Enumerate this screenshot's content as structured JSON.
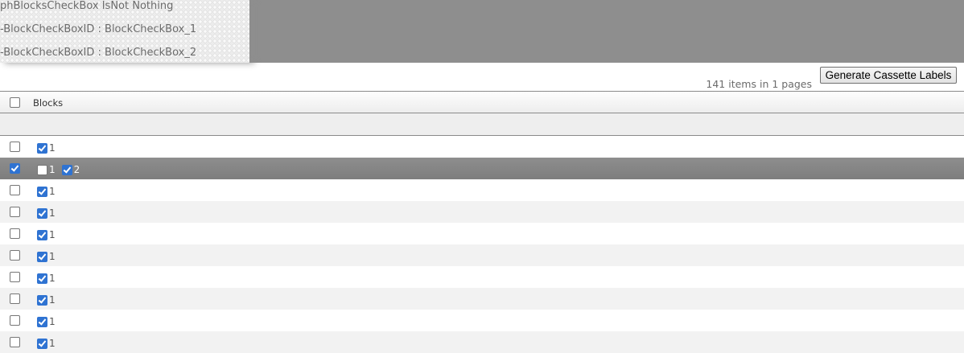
{
  "debug": {
    "lines": [
      "phBlocksCheckBox IsNot Nothing",
      "-BlockCheckBoxID : BlockCheckBox_1",
      "-BlockCheckBoxID : BlockCheckBox_2"
    ]
  },
  "toolbar": {
    "generate_label": "Generate Cassette Labels",
    "count_text": "141 items in 1 pages"
  },
  "grid": {
    "header": {
      "blocks": "Blocks",
      "select_all": false
    },
    "rows": [
      {
        "selected": false,
        "blocks": [
          {
            "label": "1",
            "checked": true
          }
        ]
      },
      {
        "selected": true,
        "blocks": [
          {
            "label": "1",
            "checked": false
          },
          {
            "label": "2",
            "checked": true
          }
        ]
      },
      {
        "selected": false,
        "blocks": [
          {
            "label": "1",
            "checked": true
          }
        ]
      },
      {
        "selected": false,
        "blocks": [
          {
            "label": "1",
            "checked": true
          }
        ]
      },
      {
        "selected": false,
        "blocks": [
          {
            "label": "1",
            "checked": true
          }
        ]
      },
      {
        "selected": false,
        "blocks": [
          {
            "label": "1",
            "checked": true
          }
        ]
      },
      {
        "selected": false,
        "blocks": [
          {
            "label": "1",
            "checked": true
          }
        ]
      },
      {
        "selected": false,
        "blocks": [
          {
            "label": "1",
            "checked": true
          }
        ]
      },
      {
        "selected": false,
        "blocks": [
          {
            "label": "1",
            "checked": true
          }
        ]
      },
      {
        "selected": false,
        "blocks": [
          {
            "label": "1",
            "checked": true
          }
        ]
      }
    ]
  },
  "colors": {
    "checked": "#2f73d2",
    "selected_row": "#878787",
    "alt_row": "#f2f2f2"
  }
}
